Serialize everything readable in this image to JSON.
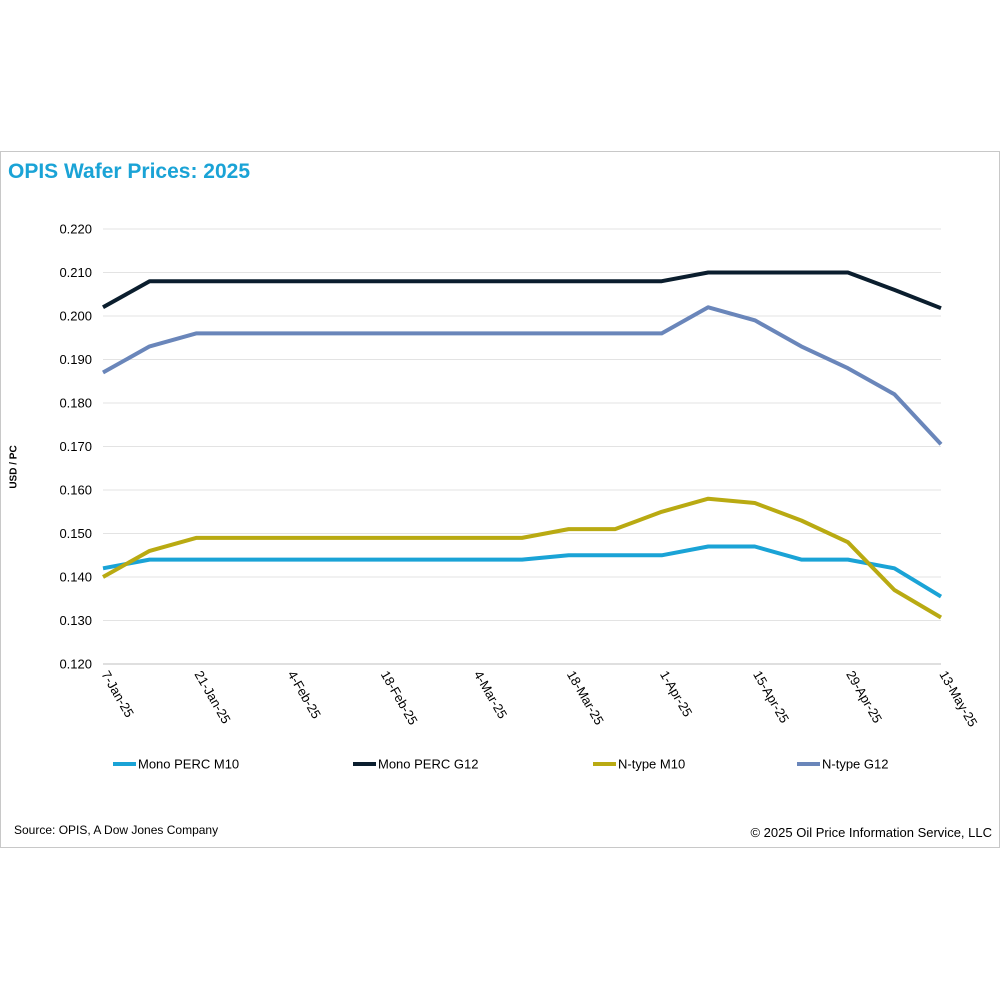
{
  "chart_data": {
    "type": "line",
    "title": "OPIS Wafer Prices: 2025",
    "ylabel": "USD / PC",
    "xlabel": "",
    "ylim": [
      0.12,
      0.22
    ],
    "yticks": [
      "0.120",
      "0.130",
      "0.140",
      "0.150",
      "0.160",
      "0.170",
      "0.180",
      "0.190",
      "0.200",
      "0.210",
      "0.220"
    ],
    "categories": [
      "7-Jan-25",
      "14-Jan-25",
      "21-Jan-25",
      "28-Jan-25",
      "4-Feb-25",
      "11-Feb-25",
      "18-Feb-25",
      "25-Feb-25",
      "4-Mar-25",
      "11-Mar-25",
      "18-Mar-25",
      "25-Mar-25",
      "1-Apr-25",
      "8-Apr-25",
      "15-Apr-25",
      "22-Apr-25",
      "29-Apr-25",
      "6-May-25",
      "13-May-25"
    ],
    "tick_labels": [
      "7-Jan-25",
      "21-Jan-25",
      "4-Feb-25",
      "18-Feb-25",
      "4-Mar-25",
      "18-Mar-25",
      "1-Apr-25",
      "15-Apr-25",
      "29-Apr-25",
      "13-May-25"
    ],
    "grid": true,
    "legend_position": "bottom",
    "series": [
      {
        "name": "Mono PERC M10",
        "color": "#1aa3d6",
        "values": [
          0.142,
          0.144,
          0.144,
          0.144,
          0.144,
          0.144,
          0.144,
          0.144,
          0.144,
          0.144,
          0.145,
          0.145,
          0.145,
          0.147,
          0.147,
          0.144,
          0.144,
          0.142,
          0.1355
        ]
      },
      {
        "name": "Mono PERC G12",
        "color": "#0b1e2e",
        "values": [
          0.202,
          0.208,
          0.208,
          0.208,
          0.208,
          0.208,
          0.208,
          0.208,
          0.208,
          0.208,
          0.208,
          0.208,
          0.208,
          0.21,
          0.21,
          0.21,
          0.21,
          0.206,
          0.2018
        ]
      },
      {
        "name": "N-type M10",
        "color": "#b9aa12",
        "values": [
          0.14,
          0.146,
          0.149,
          0.149,
          0.149,
          0.149,
          0.149,
          0.149,
          0.149,
          0.149,
          0.151,
          0.151,
          0.155,
          0.158,
          0.157,
          0.153,
          0.148,
          0.137,
          0.1307
        ]
      },
      {
        "name": "N-type G12",
        "color": "#6a86ba",
        "values": [
          0.187,
          0.193,
          0.196,
          0.196,
          0.196,
          0.196,
          0.196,
          0.196,
          0.196,
          0.196,
          0.196,
          0.196,
          0.196,
          0.202,
          0.199,
          0.193,
          0.188,
          0.182,
          0.1705
        ]
      }
    ]
  },
  "footer": {
    "source": "Source: OPIS, A Dow Jones Company",
    "copyright": "© 2025 Oil Price Information Service, LLC"
  }
}
